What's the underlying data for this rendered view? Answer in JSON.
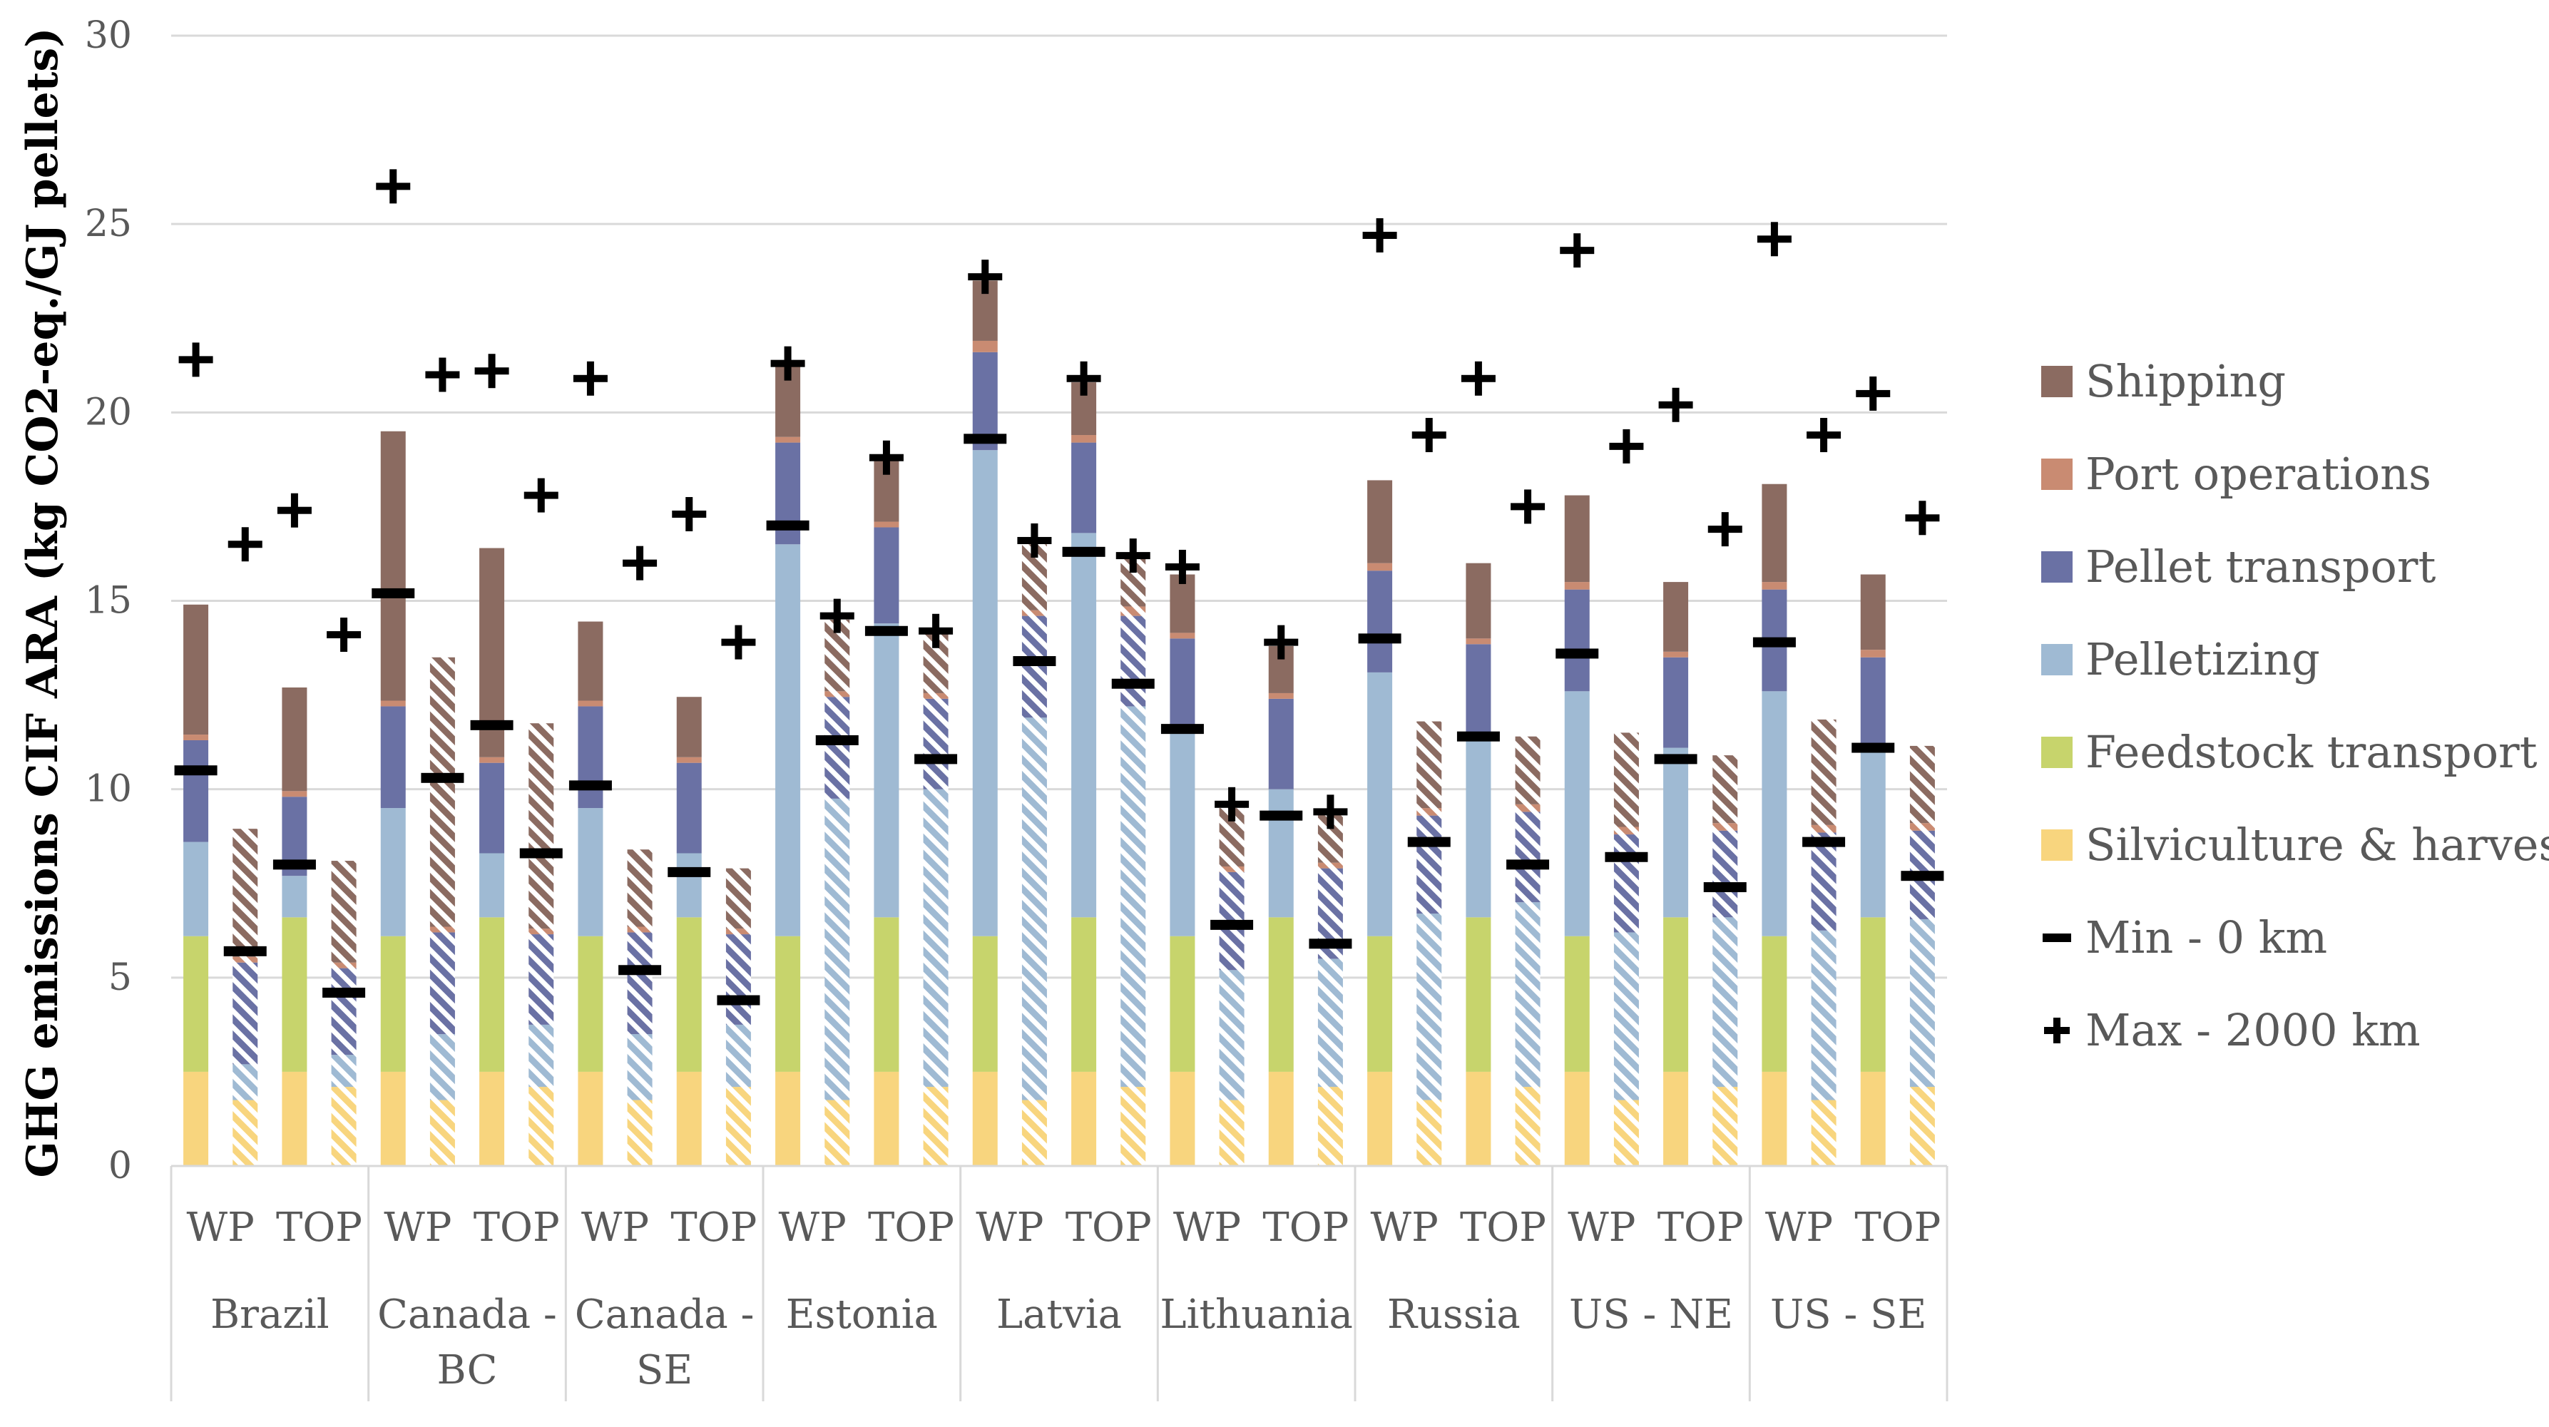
{
  "chart_data": {
    "type": "bar",
    "stacked": true,
    "ylabel": "GHG emissions CIF ARA (kg CO2-eq./GJ pellets)",
    "xlabel": "",
    "ylim": [
      0,
      30
    ],
    "yticks": [
      "0",
      "5",
      "10",
      "15",
      "20",
      "25",
      "30"
    ],
    "grid": true,
    "legend_position": "right",
    "groups": [
      "Brazil",
      "Canada - BC",
      "Canada - SE",
      "Estonia",
      "Latvia",
      "Lithuania",
      "Russia",
      "US - NE",
      "US - SE"
    ],
    "group_label_lines": [
      [
        "Brazil"
      ],
      [
        "Canada -",
        "BC"
      ],
      [
        "Canada -",
        "SE"
      ],
      [
        "Estonia"
      ],
      [
        "Latvia"
      ],
      [
        "Lithuania"
      ],
      [
        "Russia"
      ],
      [
        "US - NE"
      ],
      [
        "US - SE"
      ]
    ],
    "subcategories": [
      "WP",
      "TOP"
    ],
    "hatched_note": "Within each WP/TOP pair, the second bar is drawn with diagonal hatching",
    "series": [
      {
        "name": "Shipping",
        "color": "#8B6B61"
      },
      {
        "name": "Port operations",
        "color": "#C98B72"
      },
      {
        "name": "Pellet transport",
        "color": "#6A71A4"
      },
      {
        "name": "Pelletizing",
        "color": "#9FBAD3"
      },
      {
        "name": "Feedstock transport",
        "color": "#C7D46C"
      },
      {
        "name": "Silviculture & harvest",
        "color": "#F8D57E"
      }
    ],
    "markers": [
      {
        "name": "Min - 0 km",
        "symbol": "dash",
        "color": "#000000"
      },
      {
        "name": "Max - 2000 km",
        "symbol": "plus",
        "color": "#000000"
      }
    ],
    "legend_order": [
      "Shipping",
      "Port operations",
      "Pellet transport",
      "Pelletizing",
      "Feedstock transport",
      "Silviculture & harvest",
      "Min - 0 km",
      "Max - 2000 km"
    ],
    "bars": [
      {
        "group": "Brazil",
        "sub": "WP",
        "hatched": false,
        "values": {
          "Silviculture & harvest": 2.5,
          "Feedstock transport": 3.6,
          "Pelletizing": 2.5,
          "Pellet transport": 2.7,
          "Port operations": 0.15,
          "Shipping": 3.45
        },
        "min": 10.5,
        "max": 21.4
      },
      {
        "group": "Brazil",
        "sub": "WP",
        "hatched": true,
        "values": {
          "Silviculture & harvest": 1.75,
          "Feedstock transport": 0.0,
          "Pelletizing": 0.95,
          "Pellet transport": 2.7,
          "Port operations": 0.15,
          "Shipping": 3.4
        },
        "min": 5.7,
        "max": 16.5
      },
      {
        "group": "Brazil",
        "sub": "TOP",
        "hatched": false,
        "values": {
          "Silviculture & harvest": 2.5,
          "Feedstock transport": 4.1,
          "Pelletizing": 1.1,
          "Pellet transport": 2.1,
          "Port operations": 0.15,
          "Shipping": 2.75
        },
        "min": 8.0,
        "max": 17.4
      },
      {
        "group": "Brazil",
        "sub": "TOP",
        "hatched": true,
        "values": {
          "Silviculture & harvest": 2.1,
          "Feedstock transport": 0.0,
          "Pelletizing": 0.85,
          "Pellet transport": 2.3,
          "Port operations": 0.15,
          "Shipping": 2.7
        },
        "min": 4.6,
        "max": 14.1
      },
      {
        "group": "Canada - BC",
        "sub": "WP",
        "hatched": false,
        "values": {
          "Silviculture & harvest": 2.5,
          "Feedstock transport": 3.6,
          "Pelletizing": 3.4,
          "Pellet transport": 2.7,
          "Port operations": 0.15,
          "Shipping": 7.15
        },
        "min": 15.2,
        "max": 26.0
      },
      {
        "group": "Canada - BC",
        "sub": "WP",
        "hatched": true,
        "values": {
          "Silviculture & harvest": 1.75,
          "Feedstock transport": 0.0,
          "Pelletizing": 1.75,
          "Pellet transport": 2.7,
          "Port operations": 0.15,
          "Shipping": 7.15
        },
        "min": 10.3,
        "max": 21.0
      },
      {
        "group": "Canada - BC",
        "sub": "TOP",
        "hatched": false,
        "values": {
          "Silviculture & harvest": 2.5,
          "Feedstock transport": 4.1,
          "Pelletizing": 1.7,
          "Pellet transport": 2.4,
          "Port operations": 0.15,
          "Shipping": 5.55
        },
        "min": 11.7,
        "max": 21.1
      },
      {
        "group": "Canada - BC",
        "sub": "TOP",
        "hatched": true,
        "values": {
          "Silviculture & harvest": 2.1,
          "Feedstock transport": 0.0,
          "Pelletizing": 1.65,
          "Pellet transport": 2.4,
          "Port operations": 0.15,
          "Shipping": 5.45
        },
        "min": 8.3,
        "max": 17.8
      },
      {
        "group": "Canada - SE",
        "sub": "WP",
        "hatched": false,
        "values": {
          "Silviculture & harvest": 2.5,
          "Feedstock transport": 3.6,
          "Pelletizing": 3.4,
          "Pellet transport": 2.7,
          "Port operations": 0.15,
          "Shipping": 2.1
        },
        "min": 10.1,
        "max": 20.9
      },
      {
        "group": "Canada - SE",
        "sub": "WP",
        "hatched": true,
        "values": {
          "Silviculture & harvest": 1.75,
          "Feedstock transport": 0.0,
          "Pelletizing": 1.75,
          "Pellet transport": 2.7,
          "Port operations": 0.15,
          "Shipping": 2.05
        },
        "min": 5.2,
        "max": 16.0
      },
      {
        "group": "Canada - SE",
        "sub": "TOP",
        "hatched": false,
        "values": {
          "Silviculture & harvest": 2.5,
          "Feedstock transport": 4.1,
          "Pelletizing": 1.7,
          "Pellet transport": 2.4,
          "Port operations": 0.15,
          "Shipping": 1.6
        },
        "min": 7.8,
        "max": 17.3
      },
      {
        "group": "Canada - SE",
        "sub": "TOP",
        "hatched": true,
        "values": {
          "Silviculture & harvest": 2.1,
          "Feedstock transport": 0.0,
          "Pelletizing": 1.65,
          "Pellet transport": 2.4,
          "Port operations": 0.15,
          "Shipping": 1.6
        },
        "min": 4.4,
        "max": 13.9
      },
      {
        "group": "Estonia",
        "sub": "WP",
        "hatched": false,
        "values": {
          "Silviculture & harvest": 2.5,
          "Feedstock transport": 3.6,
          "Pelletizing": 10.4,
          "Pellet transport": 2.7,
          "Port operations": 0.15,
          "Shipping": 1.95
        },
        "min": 17.0,
        "max": 21.3
      },
      {
        "group": "Estonia",
        "sub": "WP",
        "hatched": true,
        "values": {
          "Silviculture & harvest": 1.75,
          "Feedstock transport": 0.0,
          "Pelletizing": 8.0,
          "Pellet transport": 2.7,
          "Port operations": 0.15,
          "Shipping": 1.9
        },
        "min": 11.3,
        "max": 14.6
      },
      {
        "group": "Estonia",
        "sub": "TOP",
        "hatched": false,
        "values": {
          "Silviculture & harvest": 2.5,
          "Feedstock transport": 4.1,
          "Pelletizing": 7.8,
          "Pellet transport": 2.55,
          "Port operations": 0.15,
          "Shipping": 1.7
        },
        "min": 14.2,
        "max": 18.8
      },
      {
        "group": "Estonia",
        "sub": "TOP",
        "hatched": true,
        "values": {
          "Silviculture & harvest": 2.1,
          "Feedstock transport": 0.0,
          "Pelletizing": 7.9,
          "Pellet transport": 2.4,
          "Port operations": 0.15,
          "Shipping": 1.7
        },
        "min": 10.8,
        "max": 14.2
      },
      {
        "group": "Latvia",
        "sub": "WP",
        "hatched": false,
        "values": {
          "Silviculture & harvest": 2.5,
          "Feedstock transport": 3.6,
          "Pelletizing": 12.9,
          "Pellet transport": 2.6,
          "Port operations": 0.3,
          "Shipping": 1.6
        },
        "min": 19.3,
        "max": 23.6
      },
      {
        "group": "Latvia",
        "sub": "WP",
        "hatched": true,
        "values": {
          "Silviculture & harvest": 1.75,
          "Feedstock transport": 0.0,
          "Pelletizing": 10.15,
          "Pellet transport": 2.7,
          "Port operations": 0.15,
          "Shipping": 1.75
        },
        "min": 13.4,
        "max": 16.6
      },
      {
        "group": "Latvia",
        "sub": "TOP",
        "hatched": false,
        "values": {
          "Silviculture & harvest": 2.5,
          "Feedstock transport": 4.1,
          "Pelletizing": 10.2,
          "Pellet transport": 2.4,
          "Port operations": 0.2,
          "Shipping": 1.4
        },
        "min": 16.3,
        "max": 20.9
      },
      {
        "group": "Latvia",
        "sub": "TOP",
        "hatched": true,
        "values": {
          "Silviculture & harvest": 2.1,
          "Feedstock transport": 0.0,
          "Pelletizing": 10.1,
          "Pellet transport": 2.4,
          "Port operations": 0.25,
          "Shipping": 1.35
        },
        "min": 12.8,
        "max": 16.2
      },
      {
        "group": "Lithuania",
        "sub": "WP",
        "hatched": false,
        "values": {
          "Silviculture & harvest": 2.5,
          "Feedstock transport": 3.6,
          "Pelletizing": 5.4,
          "Pellet transport": 2.5,
          "Port operations": 0.15,
          "Shipping": 1.55
        },
        "min": 11.6,
        "max": 15.9
      },
      {
        "group": "Lithuania",
        "sub": "WP",
        "hatched": true,
        "values": {
          "Silviculture & harvest": 1.75,
          "Feedstock transport": 0.0,
          "Pelletizing": 3.45,
          "Pellet transport": 2.6,
          "Port operations": 0.15,
          "Shipping": 1.55
        },
        "min": 6.4,
        "max": 9.6
      },
      {
        "group": "Lithuania",
        "sub": "TOP",
        "hatched": false,
        "values": {
          "Silviculture & harvest": 2.5,
          "Feedstock transport": 4.1,
          "Pelletizing": 3.4,
          "Pellet transport": 2.4,
          "Port operations": 0.15,
          "Shipping": 1.25
        },
        "min": 9.3,
        "max": 13.9
      },
      {
        "group": "Lithuania",
        "sub": "TOP",
        "hatched": true,
        "values": {
          "Silviculture & harvest": 2.1,
          "Feedstock transport": 0.0,
          "Pelletizing": 3.4,
          "Pellet transport": 2.4,
          "Port operations": 0.15,
          "Shipping": 1.35
        },
        "min": 5.9,
        "max": 9.4
      },
      {
        "group": "Russia",
        "sub": "WP",
        "hatched": false,
        "values": {
          "Silviculture & harvest": 2.5,
          "Feedstock transport": 3.6,
          "Pelletizing": 7.0,
          "Pellet transport": 2.7,
          "Port operations": 0.2,
          "Shipping": 2.2
        },
        "min": 14.0,
        "max": 24.7
      },
      {
        "group": "Russia",
        "sub": "WP",
        "hatched": true,
        "values": {
          "Silviculture & harvest": 1.75,
          "Feedstock transport": 0.0,
          "Pelletizing": 4.95,
          "Pellet transport": 2.6,
          "Port operations": 0.2,
          "Shipping": 2.3
        },
        "min": 8.6,
        "max": 19.4
      },
      {
        "group": "Russia",
        "sub": "TOP",
        "hatched": false,
        "values": {
          "Silviculture & harvest": 2.5,
          "Feedstock transport": 4.1,
          "Pelletizing": 4.7,
          "Pellet transport": 2.55,
          "Port operations": 0.15,
          "Shipping": 2.0
        },
        "min": 11.4,
        "max": 20.9
      },
      {
        "group": "Russia",
        "sub": "TOP",
        "hatched": true,
        "values": {
          "Silviculture & harvest": 2.1,
          "Feedstock transport": 0.0,
          "Pelletizing": 4.9,
          "Pellet transport": 2.4,
          "Port operations": 0.2,
          "Shipping": 1.8
        },
        "min": 8.0,
        "max": 17.5
      },
      {
        "group": "US - NE",
        "sub": "WP",
        "hatched": false,
        "values": {
          "Silviculture & harvest": 2.5,
          "Feedstock transport": 3.6,
          "Pelletizing": 6.5,
          "Pellet transport": 2.7,
          "Port operations": 0.2,
          "Shipping": 2.3
        },
        "min": 13.6,
        "max": 24.3
      },
      {
        "group": "US - NE",
        "sub": "WP",
        "hatched": true,
        "values": {
          "Silviculture & harvest": 1.75,
          "Feedstock transport": 0.0,
          "Pelletizing": 4.45,
          "Pellet transport": 2.6,
          "Port operations": 0.2,
          "Shipping": 2.5
        },
        "min": 8.2,
        "max": 19.1
      },
      {
        "group": "US - NE",
        "sub": "TOP",
        "hatched": false,
        "values": {
          "Silviculture & harvest": 2.5,
          "Feedstock transport": 4.1,
          "Pelletizing": 4.5,
          "Pellet transport": 2.4,
          "Port operations": 0.15,
          "Shipping": 1.85
        },
        "min": 10.8,
        "max": 20.2
      },
      {
        "group": "US - NE",
        "sub": "TOP",
        "hatched": true,
        "values": {
          "Silviculture & harvest": 2.1,
          "Feedstock transport": 0.0,
          "Pelletizing": 4.5,
          "Pellet transport": 2.3,
          "Port operations": 0.2,
          "Shipping": 1.8
        },
        "min": 7.4,
        "max": 16.9
      },
      {
        "group": "US - SE",
        "sub": "WP",
        "hatched": false,
        "values": {
          "Silviculture & harvest": 2.5,
          "Feedstock transport": 3.6,
          "Pelletizing": 6.5,
          "Pellet transport": 2.7,
          "Port operations": 0.2,
          "Shipping": 2.6
        },
        "min": 13.9,
        "max": 24.6
      },
      {
        "group": "US - SE",
        "sub": "WP",
        "hatched": true,
        "values": {
          "Silviculture & harvest": 1.75,
          "Feedstock transport": 0.0,
          "Pelletizing": 4.5,
          "Pellet transport": 2.6,
          "Port operations": 0.2,
          "Shipping": 2.8
        },
        "min": 8.6,
        "max": 19.4
      },
      {
        "group": "US - SE",
        "sub": "TOP",
        "hatched": false,
        "values": {
          "Silviculture & harvest": 2.5,
          "Feedstock transport": 4.1,
          "Pelletizing": 4.5,
          "Pellet transport": 2.4,
          "Port operations": 0.2,
          "Shipping": 2.0
        },
        "min": 11.1,
        "max": 20.5
      },
      {
        "group": "US - SE",
        "sub": "TOP",
        "hatched": true,
        "values": {
          "Silviculture & harvest": 2.1,
          "Feedstock transport": 0.0,
          "Pelletizing": 4.45,
          "Pellet transport": 2.35,
          "Port operations": 0.2,
          "Shipping": 2.05
        },
        "min": 7.7,
        "max": 17.2
      }
    ]
  }
}
